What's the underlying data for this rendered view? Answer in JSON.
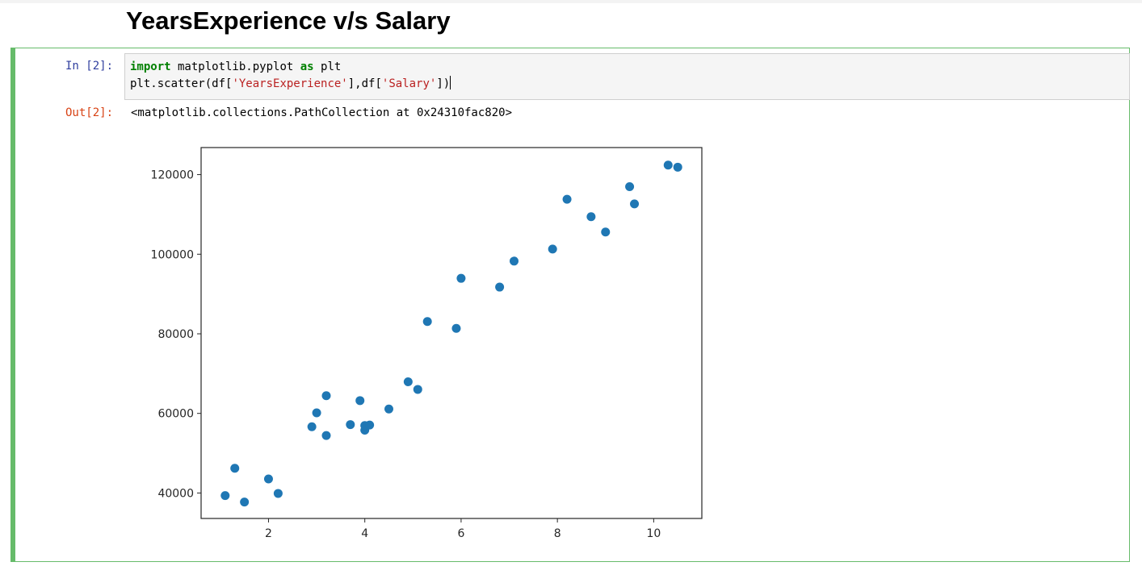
{
  "heading": "YearsExperience v/s Salary",
  "cell": {
    "in_prompt": "In [2]:",
    "out_prompt": "Out[2]:",
    "code": {
      "line1": {
        "kw1": "import",
        "t1": " matplotlib.pyplot ",
        "kw2": "as",
        "t2": " plt"
      },
      "line2": {
        "t1": "plt.scatter(df[",
        "s1": "'YearsExperience'",
        "t2": "],df[",
        "s2": "'Salary'",
        "t3": "])"
      }
    },
    "output_text": "<matplotlib.collections.PathCollection at 0x24310fac820>"
  },
  "chart_data": {
    "type": "scatter",
    "title": "",
    "xlabel": "",
    "ylabel": "",
    "xlim": [
      0.6,
      11.0
    ],
    "ylim": [
      33600,
      126800
    ],
    "xticks": [
      2,
      4,
      6,
      8,
      10
    ],
    "yticks": [
      40000,
      60000,
      80000,
      100000,
      120000
    ],
    "grid": false,
    "color": "#1f77b4",
    "x": [
      1.1,
      1.3,
      1.5,
      2.0,
      2.2,
      2.9,
      3.0,
      3.2,
      3.2,
      3.7,
      3.9,
      4.0,
      4.0,
      4.1,
      4.5,
      4.9,
      5.1,
      5.3,
      5.9,
      6.0,
      6.8,
      7.1,
      7.9,
      8.2,
      8.7,
      9.0,
      9.5,
      9.6,
      10.3,
      10.5
    ],
    "y": [
      39343,
      46205,
      37731,
      43525,
      39891,
      56642,
      60150,
      54445,
      64445,
      57189,
      63218,
      55794,
      56957,
      57081,
      61111,
      67938,
      66029,
      83088,
      81363,
      93940,
      91738,
      98273,
      101302,
      113812,
      109431,
      105582,
      116969,
      112635,
      122391,
      121872
    ]
  }
}
